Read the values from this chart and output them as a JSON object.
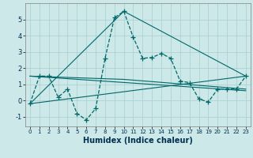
{
  "xlabel": "Humidex (Indice chaleur)",
  "background_color": "#cce8e8",
  "grid_color": "#aacece",
  "line_color": "#006868",
  "xlim": [
    -0.5,
    23.5
  ],
  "ylim": [
    -1.6,
    6.0
  ],
  "yticks": [
    -1,
    0,
    1,
    2,
    3,
    4,
    5
  ],
  "xticks": [
    0,
    1,
    2,
    3,
    4,
    5,
    6,
    7,
    8,
    9,
    10,
    11,
    12,
    13,
    14,
    15,
    16,
    17,
    18,
    19,
    20,
    21,
    22,
    23
  ],
  "main_x": [
    0,
    1,
    2,
    3,
    4,
    5,
    6,
    7,
    8,
    9,
    10,
    11,
    12,
    13,
    14,
    15,
    16,
    17,
    18,
    19,
    20,
    21,
    22,
    23
  ],
  "main_y": [
    -0.2,
    1.5,
    1.5,
    0.2,
    0.7,
    -0.8,
    -1.2,
    -0.5,
    2.6,
    5.1,
    5.5,
    3.9,
    2.6,
    2.65,
    2.9,
    2.6,
    1.2,
    1.1,
    0.1,
    -0.1,
    0.7,
    0.7,
    0.7,
    1.5
  ],
  "line1_x": [
    0,
    23
  ],
  "line1_y": [
    -0.2,
    1.5
  ],
  "line2_x": [
    0,
    23
  ],
  "line2_y": [
    1.5,
    0.6
  ],
  "line3_x": [
    0,
    10,
    23
  ],
  "line3_y": [
    -0.2,
    5.5,
    1.5
  ],
  "line4_x": [
    0,
    10,
    23
  ],
  "line4_y": [
    1.5,
    1.3,
    0.7
  ]
}
